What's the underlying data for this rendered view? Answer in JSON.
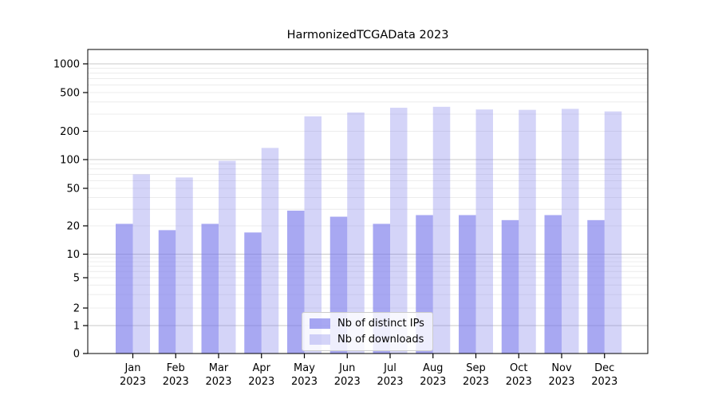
{
  "chart_data": {
    "type": "bar",
    "title": "HarmonizedTCGAData 2023",
    "categories": [
      "Jan",
      "Feb",
      "Mar",
      "Apr",
      "May",
      "Jun",
      "Jul",
      "Aug",
      "Sep",
      "Oct",
      "Nov",
      "Dec"
    ],
    "category_year_line": "2023",
    "series": [
      {
        "name": "Nb of distinct IPs",
        "color_fill": "rgba(123,123,235,0.66)",
        "color_hint": "#acacf2",
        "values": [
          21,
          18,
          21,
          17,
          29,
          25,
          21,
          26,
          26,
          23,
          26,
          23
        ]
      },
      {
        "name": "Nb of downloads",
        "color_fill": "rgba(123,123,235,0.33)",
        "color_hint": "#d9d9f6",
        "values": [
          70,
          65,
          97,
          133,
          285,
          312,
          349,
          357,
          335,
          332,
          340,
          320
        ]
      }
    ],
    "yscale": "symlog",
    "y_tick_values": [
      0,
      1,
      2,
      5,
      10,
      20,
      50,
      100,
      200,
      500,
      1000
    ],
    "y_tick_labels": [
      "0",
      "1",
      "2",
      "5",
      "10",
      "20",
      "50",
      "100",
      "200",
      "500",
      "1000"
    ],
    "ylim": [
      0,
      1400
    ],
    "grid": "horizontal, major and minor (log minors)",
    "legend_position": "lower center",
    "colors": {
      "grid_major": "#c8c8c8",
      "grid_minor": "#ececec",
      "spine": "#000000",
      "text": "#000000"
    }
  }
}
